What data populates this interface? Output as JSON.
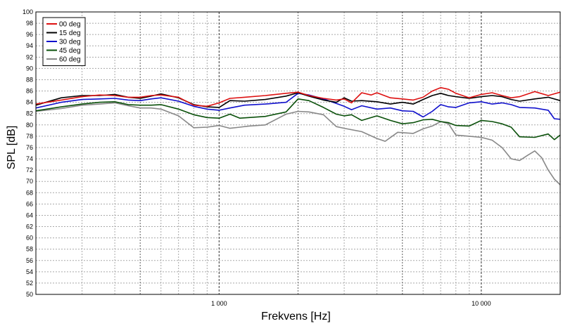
{
  "chart_data": {
    "type": "line",
    "title": "",
    "xlabel": "Frekvens [Hz]",
    "ylabel": "SPL [dB]",
    "x_scale": "log",
    "xlim": [
      200,
      20000
    ],
    "ylim": [
      50,
      100
    ],
    "x_tick_labels": [
      {
        "x": 1000,
        "label": "1 000"
      },
      {
        "x": 10000,
        "label": "10 000"
      }
    ],
    "y_ticks": [
      50,
      52,
      54,
      56,
      58,
      60,
      62,
      64,
      66,
      68,
      70,
      72,
      74,
      76,
      78,
      80,
      82,
      84,
      86,
      88,
      90,
      92,
      94,
      96,
      98,
      100
    ],
    "grid": true,
    "legend": "top-left",
    "series": [
      {
        "name": "00 deg",
        "color": "#dd1111",
        "points": [
          [
            200,
            83.7
          ],
          [
            250,
            84.4
          ],
          [
            300,
            85.0
          ],
          [
            350,
            85.3
          ],
          [
            400,
            85.2
          ],
          [
            450,
            84.9
          ],
          [
            500,
            84.9
          ],
          [
            550,
            85.2
          ],
          [
            600,
            85.3
          ],
          [
            700,
            84.9
          ],
          [
            800,
            83.5
          ],
          [
            900,
            83.3
          ],
          [
            1000,
            83.9
          ],
          [
            1100,
            84.7
          ],
          [
            1250,
            84.9
          ],
          [
            1500,
            85.2
          ],
          [
            1800,
            85.6
          ],
          [
            2000,
            85.8
          ],
          [
            2200,
            85.2
          ],
          [
            2500,
            84.7
          ],
          [
            2800,
            84.4
          ],
          [
            3000,
            84.6
          ],
          [
            3200,
            83.9
          ],
          [
            3500,
            85.7
          ],
          [
            3800,
            85.3
          ],
          [
            4000,
            85.7
          ],
          [
            4500,
            84.8
          ],
          [
            5000,
            84.6
          ],
          [
            5500,
            84.4
          ],
          [
            6000,
            84.9
          ],
          [
            6500,
            86.0
          ],
          [
            7000,
            86.6
          ],
          [
            7500,
            86.3
          ],
          [
            8000,
            85.6
          ],
          [
            9000,
            84.8
          ],
          [
            10000,
            85.4
          ],
          [
            11000,
            85.7
          ],
          [
            12000,
            85.2
          ],
          [
            13000,
            84.8
          ],
          [
            14000,
            85.0
          ],
          [
            16000,
            85.9
          ],
          [
            18000,
            85.2
          ],
          [
            20000,
            85.8
          ]
        ]
      },
      {
        "name": "15 deg",
        "color": "#000000",
        "points": [
          [
            200,
            83.5
          ],
          [
            250,
            84.8
          ],
          [
            300,
            85.2
          ],
          [
            350,
            85.2
          ],
          [
            400,
            85.4
          ],
          [
            450,
            84.9
          ],
          [
            500,
            84.7
          ],
          [
            550,
            85.1
          ],
          [
            600,
            85.5
          ],
          [
            700,
            84.8
          ],
          [
            800,
            83.6
          ],
          [
            900,
            83.2
          ],
          [
            1000,
            83.1
          ],
          [
            1100,
            84.3
          ],
          [
            1250,
            84.2
          ],
          [
            1500,
            84.5
          ],
          [
            1800,
            85.1
          ],
          [
            2000,
            85.7
          ],
          [
            2200,
            85.1
          ],
          [
            2500,
            84.4
          ],
          [
            2800,
            84.0
          ],
          [
            3000,
            84.8
          ],
          [
            3200,
            84.2
          ],
          [
            3500,
            84.3
          ],
          [
            4000,
            84.1
          ],
          [
            4500,
            83.7
          ],
          [
            5000,
            84.0
          ],
          [
            5500,
            83.7
          ],
          [
            6000,
            84.5
          ],
          [
            6500,
            85.2
          ],
          [
            7000,
            85.6
          ],
          [
            7500,
            85.2
          ],
          [
            8000,
            85.0
          ],
          [
            9000,
            84.7
          ],
          [
            10000,
            85.0
          ],
          [
            11000,
            85.2
          ],
          [
            12000,
            85.0
          ],
          [
            13000,
            84.5
          ],
          [
            14000,
            84.2
          ],
          [
            16000,
            84.6
          ],
          [
            18000,
            84.9
          ],
          [
            20000,
            84.3
          ]
        ]
      },
      {
        "name": "30 deg",
        "color": "#1010cc",
        "points": [
          [
            200,
            83.0
          ],
          [
            250,
            84.0
          ],
          [
            300,
            84.5
          ],
          [
            350,
            84.6
          ],
          [
            400,
            84.7
          ],
          [
            450,
            84.4
          ],
          [
            500,
            84.3
          ],
          [
            550,
            84.6
          ],
          [
            600,
            84.8
          ],
          [
            700,
            84.2
          ],
          [
            800,
            83.3
          ],
          [
            900,
            82.8
          ],
          [
            1000,
            82.6
          ],
          [
            1100,
            83.0
          ],
          [
            1250,
            83.5
          ],
          [
            1500,
            83.7
          ],
          [
            1800,
            84.0
          ],
          [
            2000,
            85.6
          ],
          [
            2200,
            85.3
          ],
          [
            2500,
            84.6
          ],
          [
            2800,
            83.8
          ],
          [
            3000,
            83.3
          ],
          [
            3200,
            82.7
          ],
          [
            3500,
            83.4
          ],
          [
            4000,
            82.8
          ],
          [
            4500,
            83.0
          ],
          [
            5000,
            82.5
          ],
          [
            5500,
            82.4
          ],
          [
            6000,
            81.4
          ],
          [
            6500,
            82.4
          ],
          [
            7000,
            83.6
          ],
          [
            7500,
            83.2
          ],
          [
            8000,
            83.1
          ],
          [
            9000,
            83.9
          ],
          [
            10000,
            84.1
          ],
          [
            11000,
            83.7
          ],
          [
            12000,
            83.9
          ],
          [
            13000,
            83.6
          ],
          [
            14000,
            83.1
          ],
          [
            16000,
            83.0
          ],
          [
            18000,
            82.6
          ],
          [
            19000,
            81.1
          ],
          [
            20000,
            81.0
          ]
        ]
      },
      {
        "name": "45 deg",
        "color": "#0a500a",
        "points": [
          [
            200,
            82.5
          ],
          [
            250,
            83.2
          ],
          [
            300,
            83.7
          ],
          [
            350,
            84.0
          ],
          [
            400,
            84.1
          ],
          [
            450,
            83.6
          ],
          [
            500,
            83.5
          ],
          [
            550,
            83.5
          ],
          [
            600,
            83.6
          ],
          [
            700,
            82.8
          ],
          [
            800,
            81.8
          ],
          [
            900,
            81.3
          ],
          [
            1000,
            81.2
          ],
          [
            1100,
            81.9
          ],
          [
            1200,
            81.2
          ],
          [
            1300,
            81.3
          ],
          [
            1500,
            81.5
          ],
          [
            1800,
            82.3
          ],
          [
            2000,
            84.6
          ],
          [
            2200,
            84.3
          ],
          [
            2500,
            83.1
          ],
          [
            2800,
            81.9
          ],
          [
            3000,
            81.6
          ],
          [
            3200,
            81.8
          ],
          [
            3500,
            80.8
          ],
          [
            4000,
            81.6
          ],
          [
            4500,
            80.8
          ],
          [
            5000,
            80.2
          ],
          [
            5500,
            80.4
          ],
          [
            6000,
            80.9
          ],
          [
            6500,
            81.0
          ],
          [
            7000,
            80.6
          ],
          [
            7500,
            80.4
          ],
          [
            8000,
            79.9
          ],
          [
            9000,
            79.8
          ],
          [
            10000,
            80.8
          ],
          [
            11000,
            80.6
          ],
          [
            12000,
            80.2
          ],
          [
            13000,
            79.6
          ],
          [
            14000,
            77.9
          ],
          [
            16000,
            77.8
          ],
          [
            18000,
            78.4
          ],
          [
            19000,
            77.4
          ],
          [
            20000,
            78.2
          ]
        ]
      },
      {
        "name": "60 deg",
        "color": "#888888",
        "points": [
          [
            200,
            82.4
          ],
          [
            250,
            82.9
          ],
          [
            300,
            83.5
          ],
          [
            350,
            83.7
          ],
          [
            400,
            83.9
          ],
          [
            450,
            83.4
          ],
          [
            500,
            83.0
          ],
          [
            550,
            83.0
          ],
          [
            600,
            82.8
          ],
          [
            700,
            81.6
          ],
          [
            800,
            79.5
          ],
          [
            900,
            79.6
          ],
          [
            1000,
            79.9
          ],
          [
            1100,
            79.4
          ],
          [
            1200,
            79.6
          ],
          [
            1300,
            79.8
          ],
          [
            1500,
            80.0
          ],
          [
            1800,
            81.9
          ],
          [
            2000,
            82.4
          ],
          [
            2200,
            82.3
          ],
          [
            2500,
            81.8
          ],
          [
            2800,
            79.7
          ],
          [
            3000,
            79.4
          ],
          [
            3500,
            78.8
          ],
          [
            4000,
            77.6
          ],
          [
            4300,
            77.1
          ],
          [
            4800,
            78.7
          ],
          [
            5500,
            78.5
          ],
          [
            6000,
            79.3
          ],
          [
            6500,
            79.8
          ],
          [
            7000,
            80.6
          ],
          [
            7500,
            80.2
          ],
          [
            8000,
            78.2
          ],
          [
            9000,
            78.0
          ],
          [
            10000,
            77.8
          ],
          [
            11000,
            77.3
          ],
          [
            12000,
            76.0
          ],
          [
            13000,
            74.0
          ],
          [
            14000,
            73.7
          ],
          [
            15000,
            74.6
          ],
          [
            16000,
            75.4
          ],
          [
            17000,
            74.2
          ],
          [
            18000,
            72.0
          ],
          [
            19000,
            70.4
          ],
          [
            20000,
            69.4
          ]
        ]
      }
    ]
  }
}
